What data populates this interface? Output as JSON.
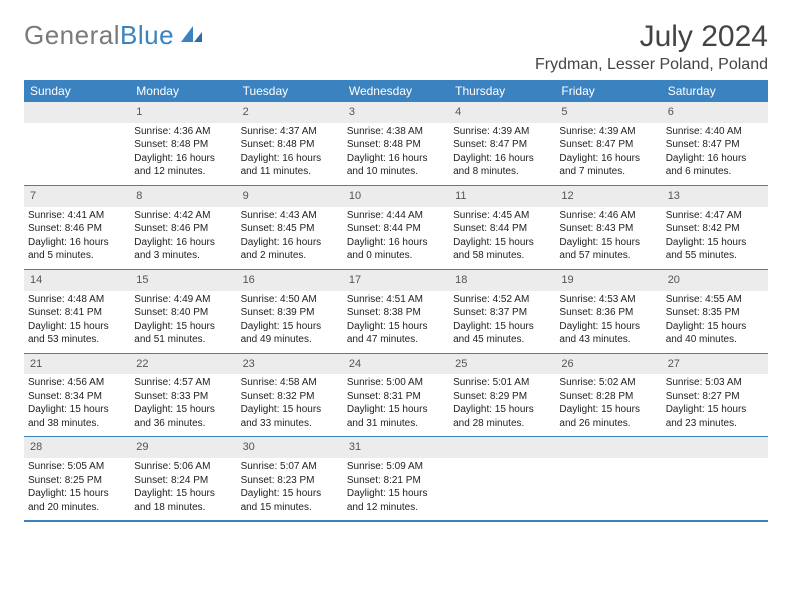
{
  "header": {
    "logo_gray": "General",
    "logo_blue": "Blue",
    "month_title": "July 2024",
    "location": "Frydman, Lesser Poland, Poland"
  },
  "colors": {
    "header_bg": "#3b83c0",
    "header_text": "#ffffff",
    "daynum_bg": "#ececec",
    "logo_gray": "#7a7a7a",
    "logo_blue": "#3b83c0"
  },
  "days_of_week": [
    "Sunday",
    "Monday",
    "Tuesday",
    "Wednesday",
    "Thursday",
    "Friday",
    "Saturday"
  ],
  "weeks": [
    {
      "nums": [
        "",
        "1",
        "2",
        "3",
        "4",
        "5",
        "6"
      ],
      "cells": [
        {
          "sunrise": "",
          "sunset": "",
          "daylight": ""
        },
        {
          "sunrise": "Sunrise: 4:36 AM",
          "sunset": "Sunset: 8:48 PM",
          "daylight": "Daylight: 16 hours and 12 minutes."
        },
        {
          "sunrise": "Sunrise: 4:37 AM",
          "sunset": "Sunset: 8:48 PM",
          "daylight": "Daylight: 16 hours and 11 minutes."
        },
        {
          "sunrise": "Sunrise: 4:38 AM",
          "sunset": "Sunset: 8:48 PM",
          "daylight": "Daylight: 16 hours and 10 minutes."
        },
        {
          "sunrise": "Sunrise: 4:39 AM",
          "sunset": "Sunset: 8:47 PM",
          "daylight": "Daylight: 16 hours and 8 minutes."
        },
        {
          "sunrise": "Sunrise: 4:39 AM",
          "sunset": "Sunset: 8:47 PM",
          "daylight": "Daylight: 16 hours and 7 minutes."
        },
        {
          "sunrise": "Sunrise: 4:40 AM",
          "sunset": "Sunset: 8:47 PM",
          "daylight": "Daylight: 16 hours and 6 minutes."
        }
      ]
    },
    {
      "nums": [
        "7",
        "8",
        "9",
        "10",
        "11",
        "12",
        "13"
      ],
      "cells": [
        {
          "sunrise": "Sunrise: 4:41 AM",
          "sunset": "Sunset: 8:46 PM",
          "daylight": "Daylight: 16 hours and 5 minutes."
        },
        {
          "sunrise": "Sunrise: 4:42 AM",
          "sunset": "Sunset: 8:46 PM",
          "daylight": "Daylight: 16 hours and 3 minutes."
        },
        {
          "sunrise": "Sunrise: 4:43 AM",
          "sunset": "Sunset: 8:45 PM",
          "daylight": "Daylight: 16 hours and 2 minutes."
        },
        {
          "sunrise": "Sunrise: 4:44 AM",
          "sunset": "Sunset: 8:44 PM",
          "daylight": "Daylight: 16 hours and 0 minutes."
        },
        {
          "sunrise": "Sunrise: 4:45 AM",
          "sunset": "Sunset: 8:44 PM",
          "daylight": "Daylight: 15 hours and 58 minutes."
        },
        {
          "sunrise": "Sunrise: 4:46 AM",
          "sunset": "Sunset: 8:43 PM",
          "daylight": "Daylight: 15 hours and 57 minutes."
        },
        {
          "sunrise": "Sunrise: 4:47 AM",
          "sunset": "Sunset: 8:42 PM",
          "daylight": "Daylight: 15 hours and 55 minutes."
        }
      ]
    },
    {
      "nums": [
        "14",
        "15",
        "16",
        "17",
        "18",
        "19",
        "20"
      ],
      "cells": [
        {
          "sunrise": "Sunrise: 4:48 AM",
          "sunset": "Sunset: 8:41 PM",
          "daylight": "Daylight: 15 hours and 53 minutes."
        },
        {
          "sunrise": "Sunrise: 4:49 AM",
          "sunset": "Sunset: 8:40 PM",
          "daylight": "Daylight: 15 hours and 51 minutes."
        },
        {
          "sunrise": "Sunrise: 4:50 AM",
          "sunset": "Sunset: 8:39 PM",
          "daylight": "Daylight: 15 hours and 49 minutes."
        },
        {
          "sunrise": "Sunrise: 4:51 AM",
          "sunset": "Sunset: 8:38 PM",
          "daylight": "Daylight: 15 hours and 47 minutes."
        },
        {
          "sunrise": "Sunrise: 4:52 AM",
          "sunset": "Sunset: 8:37 PM",
          "daylight": "Daylight: 15 hours and 45 minutes."
        },
        {
          "sunrise": "Sunrise: 4:53 AM",
          "sunset": "Sunset: 8:36 PM",
          "daylight": "Daylight: 15 hours and 43 minutes."
        },
        {
          "sunrise": "Sunrise: 4:55 AM",
          "sunset": "Sunset: 8:35 PM",
          "daylight": "Daylight: 15 hours and 40 minutes."
        }
      ]
    },
    {
      "nums": [
        "21",
        "22",
        "23",
        "24",
        "25",
        "26",
        "27"
      ],
      "cells": [
        {
          "sunrise": "Sunrise: 4:56 AM",
          "sunset": "Sunset: 8:34 PM",
          "daylight": "Daylight: 15 hours and 38 minutes."
        },
        {
          "sunrise": "Sunrise: 4:57 AM",
          "sunset": "Sunset: 8:33 PM",
          "daylight": "Daylight: 15 hours and 36 minutes."
        },
        {
          "sunrise": "Sunrise: 4:58 AM",
          "sunset": "Sunset: 8:32 PM",
          "daylight": "Daylight: 15 hours and 33 minutes."
        },
        {
          "sunrise": "Sunrise: 5:00 AM",
          "sunset": "Sunset: 8:31 PM",
          "daylight": "Daylight: 15 hours and 31 minutes."
        },
        {
          "sunrise": "Sunrise: 5:01 AM",
          "sunset": "Sunset: 8:29 PM",
          "daylight": "Daylight: 15 hours and 28 minutes."
        },
        {
          "sunrise": "Sunrise: 5:02 AM",
          "sunset": "Sunset: 8:28 PM",
          "daylight": "Daylight: 15 hours and 26 minutes."
        },
        {
          "sunrise": "Sunrise: 5:03 AM",
          "sunset": "Sunset: 8:27 PM",
          "daylight": "Daylight: 15 hours and 23 minutes."
        }
      ]
    },
    {
      "nums": [
        "28",
        "29",
        "30",
        "31",
        "",
        "",
        ""
      ],
      "cells": [
        {
          "sunrise": "Sunrise: 5:05 AM",
          "sunset": "Sunset: 8:25 PM",
          "daylight": "Daylight: 15 hours and 20 minutes."
        },
        {
          "sunrise": "Sunrise: 5:06 AM",
          "sunset": "Sunset: 8:24 PM",
          "daylight": "Daylight: 15 hours and 18 minutes."
        },
        {
          "sunrise": "Sunrise: 5:07 AM",
          "sunset": "Sunset: 8:23 PM",
          "daylight": "Daylight: 15 hours and 15 minutes."
        },
        {
          "sunrise": "Sunrise: 5:09 AM",
          "sunset": "Sunset: 8:21 PM",
          "daylight": "Daylight: 15 hours and 12 minutes."
        },
        {
          "sunrise": "",
          "sunset": "",
          "daylight": ""
        },
        {
          "sunrise": "",
          "sunset": "",
          "daylight": ""
        },
        {
          "sunrise": "",
          "sunset": "",
          "daylight": ""
        }
      ]
    }
  ]
}
